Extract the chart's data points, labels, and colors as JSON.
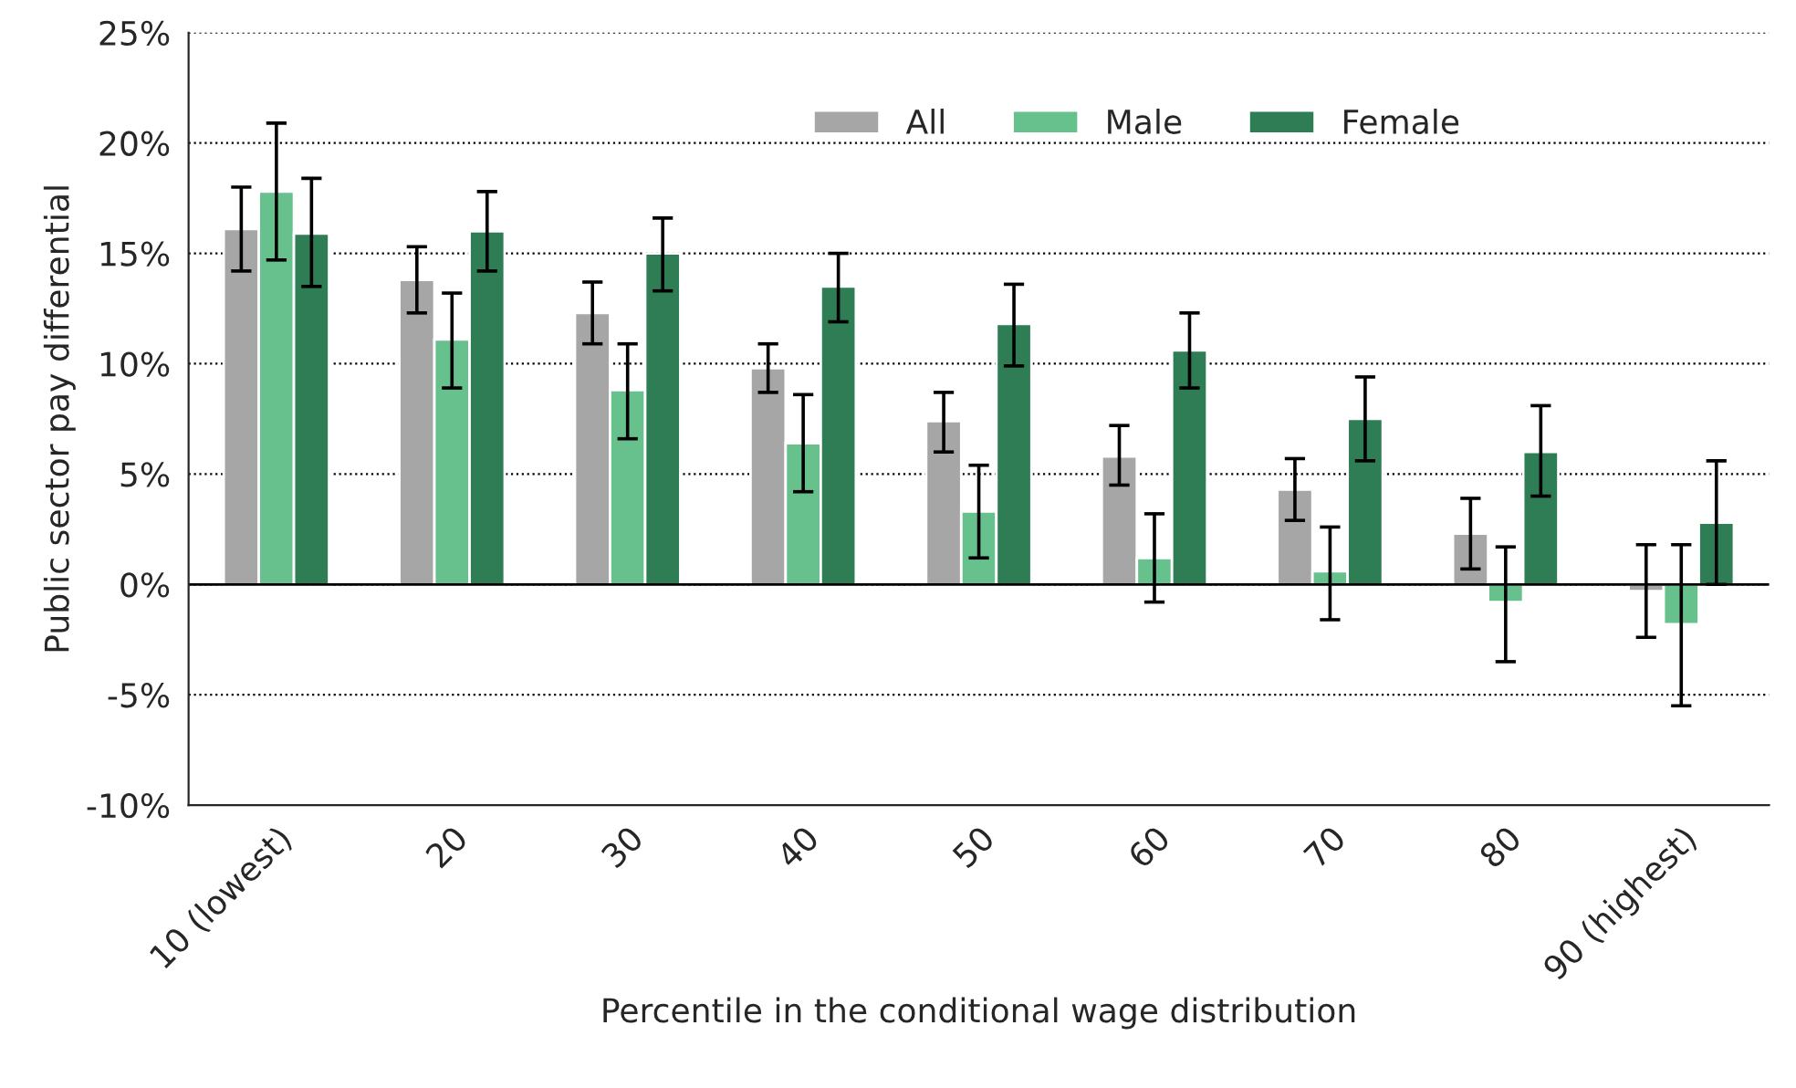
{
  "chart_data": {
    "type": "bar",
    "xlabel": "Percentile in the conditional wage distribution",
    "ylabel": "Public sector pay differential",
    "categories": [
      "10 (lowest)",
      "20",
      "30",
      "40",
      "50",
      "60",
      "70",
      "80",
      "90 (highest)"
    ],
    "series": [
      {
        "name": "All",
        "color": "#a6a6a6",
        "values": [
          16.1,
          13.8,
          12.3,
          9.8,
          7.4,
          5.8,
          4.3,
          2.3,
          -0.3
        ],
        "errors": [
          [
            14.2,
            18.0
          ],
          [
            12.3,
            15.3
          ],
          [
            10.9,
            13.7
          ],
          [
            8.7,
            10.9
          ],
          [
            6.0,
            8.7
          ],
          [
            4.5,
            7.2
          ],
          [
            2.9,
            5.7
          ],
          [
            0.7,
            3.9
          ],
          [
            -2.4,
            1.8
          ]
        ]
      },
      {
        "name": "Male",
        "color": "#66c18c",
        "values": [
          17.8,
          11.1,
          8.8,
          6.4,
          3.3,
          1.2,
          0.6,
          -0.8,
          -1.8
        ],
        "errors": [
          [
            14.7,
            20.9
          ],
          [
            8.9,
            13.2
          ],
          [
            6.6,
            10.9
          ],
          [
            4.2,
            8.6
          ],
          [
            1.2,
            5.4
          ],
          [
            -0.8,
            3.2
          ],
          [
            -1.6,
            2.6
          ],
          [
            -3.5,
            1.7
          ],
          [
            -5.5,
            1.8
          ]
        ]
      },
      {
        "name": "Female",
        "color": "#2e7d54",
        "values": [
          15.9,
          16.0,
          15.0,
          13.5,
          11.8,
          10.6,
          7.5,
          6.0,
          2.8
        ],
        "errors": [
          [
            13.5,
            18.4
          ],
          [
            14.2,
            17.8
          ],
          [
            13.3,
            16.6
          ],
          [
            11.9,
            15.0
          ],
          [
            9.9,
            13.6
          ],
          [
            8.9,
            12.3
          ],
          [
            5.6,
            9.4
          ],
          [
            4.0,
            8.1
          ],
          [
            0.0,
            5.6
          ]
        ]
      }
    ],
    "ylim": [
      -10,
      25
    ],
    "yticks": [
      {
        "value": -10,
        "label": "-10%"
      },
      {
        "value": -5,
        "label": "-5%"
      },
      {
        "value": 0,
        "label": "0%"
      },
      {
        "value": 5,
        "label": "5%"
      },
      {
        "value": 10,
        "label": "10%"
      },
      {
        "value": 15,
        "label": "15%"
      },
      {
        "value": 20,
        "label": "20%"
      },
      {
        "value": 25,
        "label": "25%"
      }
    ],
    "grid": "y",
    "legend": "top"
  }
}
